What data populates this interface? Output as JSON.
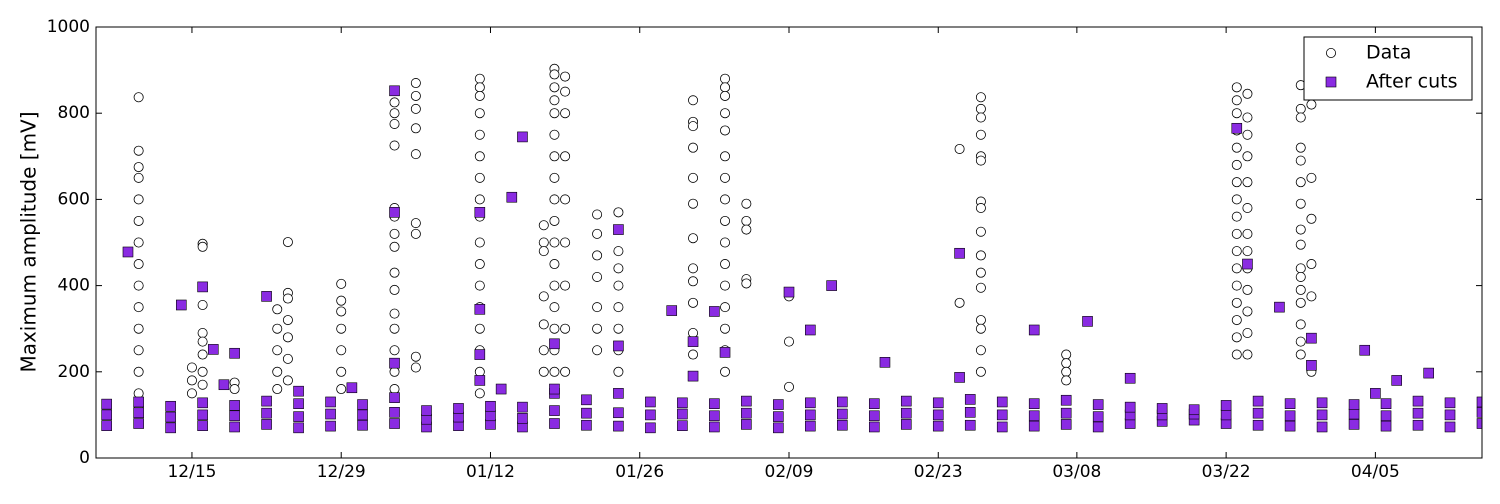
{
  "chart_data": {
    "type": "scatter",
    "y_label": "Maximum amplitude [mV]",
    "xlim": [
      "12/06",
      "04/15"
    ],
    "xticks": [
      "12/15",
      "12/29",
      "01/12",
      "01/26",
      "02/09",
      "02/23",
      "03/08",
      "03/22",
      "04/05"
    ],
    "ylim": [
      0,
      1000
    ],
    "yticks": [
      0,
      200,
      400,
      600,
      800,
      1000
    ],
    "legend": "upper right",
    "series": [
      {
        "name": "Data",
        "marker": "circle",
        "color": "#ffffff",
        "x": [
          "12/10",
          "12/10",
          "12/10",
          "12/10",
          "12/10",
          "12/10",
          "12/10",
          "12/10",
          "12/10",
          "12/10",
          "12/10",
          "12/10",
          "12/10",
          "12/10",
          "12/10",
          "12/15",
          "12/15",
          "12/15",
          "12/16",
          "12/16",
          "12/16",
          "12/16",
          "12/16",
          "12/16",
          "12/16",
          "12/16",
          "12/19",
          "12/19",
          "12/23",
          "12/23",
          "12/23",
          "12/23",
          "12/23",
          "12/24",
          "12/24",
          "12/24",
          "12/24",
          "12/24",
          "12/24",
          "12/24",
          "12/29",
          "12/29",
          "12/29",
          "12/29",
          "12/29",
          "12/29",
          "12/29",
          "01/03",
          "01/03",
          "01/03",
          "01/03",
          "01/03",
          "01/03",
          "01/03",
          "01/03",
          "01/03",
          "01/03",
          "01/03",
          "01/03",
          "01/03",
          "01/03",
          "01/03",
          "01/05",
          "01/05",
          "01/05",
          "01/05",
          "01/05",
          "01/05",
          "01/05",
          "01/05",
          "01/05",
          "01/11",
          "01/11",
          "01/11",
          "01/11",
          "01/11",
          "01/11",
          "01/11",
          "01/11",
          "01/11",
          "01/11",
          "01/11",
          "01/11",
          "01/11",
          "01/11",
          "01/11",
          "01/11",
          "01/11",
          "01/17",
          "01/17",
          "01/17",
          "01/17",
          "01/17",
          "01/17",
          "01/17",
          "01/18",
          "01/18",
          "01/18",
          "01/18",
          "01/18",
          "01/18",
          "01/18",
          "01/18",
          "01/18",
          "01/18",
          "01/18",
          "01/18",
          "01/18",
          "01/18",
          "01/18",
          "01/18",
          "01/18",
          "01/18",
          "01/19",
          "01/19",
          "01/19",
          "01/19",
          "01/19",
          "01/19",
          "01/19",
          "01/19",
          "01/19",
          "01/22",
          "01/22",
          "01/22",
          "01/22",
          "01/22",
          "01/22",
          "01/22",
          "01/24",
          "01/24",
          "01/24",
          "01/24",
          "01/24",
          "01/24",
          "01/24",
          "01/24",
          "01/24",
          "01/31",
          "01/31",
          "01/31",
          "01/31",
          "01/31",
          "01/31",
          "01/31",
          "01/31",
          "01/31",
          "01/31",
          "01/31",
          "01/31",
          "02/03",
          "02/03",
          "02/03",
          "02/03",
          "02/03",
          "02/03",
          "02/03",
          "02/03",
          "02/03",
          "02/03",
          "02/03",
          "02/03",
          "02/03",
          "02/03",
          "02/03",
          "02/03",
          "02/05",
          "02/05",
          "02/05",
          "02/05",
          "02/05",
          "02/09",
          "02/09",
          "02/09",
          "02/25",
          "02/25",
          "02/27",
          "02/27",
          "02/27",
          "02/27",
          "02/27",
          "02/27",
          "02/27",
          "02/27",
          "02/27",
          "02/27",
          "02/27",
          "02/27",
          "02/27",
          "02/27",
          "02/27",
          "02/27",
          "03/07",
          "03/07",
          "03/07",
          "03/07",
          "03/23",
          "03/23",
          "03/23",
          "03/23",
          "03/23",
          "03/23",
          "03/23",
          "03/23",
          "03/23",
          "03/23",
          "03/23",
          "03/23",
          "03/23",
          "03/23",
          "03/23",
          "03/23",
          "03/23",
          "03/24",
          "03/24",
          "03/24",
          "03/24",
          "03/24",
          "03/24",
          "03/24",
          "03/24",
          "03/24",
          "03/24",
          "03/24",
          "03/24",
          "03/24",
          "03/29",
          "03/29",
          "03/29",
          "03/29",
          "03/29",
          "03/29",
          "03/29",
          "03/29",
          "03/29",
          "03/29",
          "03/29",
          "03/29",
          "03/29",
          "03/29",
          "03/29",
          "03/29",
          "03/30",
          "03/30",
          "03/30",
          "03/30",
          "03/30",
          "03/30"
        ],
        "y": [
          837,
          713,
          675,
          650,
          600,
          550,
          500,
          450,
          400,
          350,
          300,
          250,
          200,
          150,
          120,
          210,
          180,
          150,
          497,
          490,
          355,
          290,
          270,
          240,
          200,
          170,
          175,
          160,
          345,
          300,
          250,
          200,
          160,
          501,
          383,
          370,
          320,
          280,
          230,
          180,
          404,
          365,
          340,
          300,
          250,
          200,
          160,
          825,
          800,
          775,
          725,
          580,
          560,
          520,
          490,
          430,
          390,
          335,
          300,
          250,
          200,
          160,
          870,
          840,
          810,
          765,
          705,
          545,
          520,
          235,
          210,
          880,
          860,
          840,
          800,
          750,
          700,
          650,
          600,
          560,
          500,
          450,
          400,
          350,
          300,
          250,
          200,
          150,
          540,
          500,
          480,
          375,
          310,
          250,
          200,
          903,
          890,
          860,
          830,
          800,
          750,
          700,
          650,
          600,
          550,
          500,
          450,
          400,
          350,
          300,
          250,
          200,
          150,
          885,
          850,
          800,
          700,
          600,
          500,
          400,
          300,
          200,
          565,
          520,
          470,
          420,
          350,
          300,
          250,
          570,
          530,
          480,
          440,
          400,
          350,
          300,
          250,
          200,
          830,
          780,
          770,
          720,
          650,
          590,
          510,
          440,
          410,
          360,
          290,
          240,
          880,
          860,
          840,
          800,
          760,
          700,
          650,
          600,
          550,
          500,
          450,
          400,
          350,
          300,
          250,
          200,
          590,
          550,
          530,
          415,
          405,
          375,
          270,
          165,
          717,
          360,
          837,
          810,
          790,
          750,
          700,
          690,
          595,
          580,
          525,
          470,
          430,
          395,
          320,
          300,
          250,
          200,
          240,
          220,
          200,
          180,
          860,
          830,
          800,
          760,
          720,
          680,
          640,
          600,
          560,
          520,
          480,
          440,
          400,
          360,
          320,
          280,
          240,
          845,
          790,
          750,
          700,
          640,
          580,
          520,
          480,
          440,
          390,
          340,
          290,
          240,
          865,
          810,
          790,
          720,
          690,
          640,
          590,
          530,
          495,
          440,
          420,
          390,
          360,
          310,
          270,
          240,
          820,
          650,
          555,
          450,
          375,
          200
        ]
      },
      {
        "name": "After cuts",
        "marker": "square",
        "color": "#8a2be2",
        "x": [
          "12/07",
          "12/07",
          "12/07",
          "12/10",
          "12/10",
          "12/10",
          "12/13",
          "12/13",
          "12/13",
          "12/16",
          "12/16",
          "12/16",
          "12/19",
          "12/19",
          "12/19",
          "12/22",
          "12/22",
          "12/22",
          "12/25",
          "12/25",
          "12/25",
          "12/28",
          "12/28",
          "12/28",
          "12/31",
          "12/31",
          "12/31",
          "01/03",
          "01/03",
          "01/03",
          "01/06",
          "01/06",
          "01/06",
          "01/09",
          "01/09",
          "01/09",
          "01/12",
          "01/12",
          "01/12",
          "01/15",
          "01/15",
          "01/15",
          "01/18",
          "01/18",
          "01/18",
          "01/21",
          "01/21",
          "01/21",
          "01/24",
          "01/24",
          "01/24",
          "01/27",
          "01/27",
          "01/27",
          "01/30",
          "01/30",
          "01/30",
          "02/02",
          "02/02",
          "02/02",
          "02/05",
          "02/05",
          "02/05",
          "02/08",
          "02/08",
          "02/08",
          "02/11",
          "02/11",
          "02/11",
          "02/14",
          "02/14",
          "02/14",
          "02/17",
          "02/17",
          "02/17",
          "02/20",
          "02/20",
          "02/20",
          "02/23",
          "02/23",
          "02/23",
          "02/26",
          "02/26",
          "02/26",
          "03/01",
          "03/01",
          "03/01",
          "03/04",
          "03/04",
          "03/04",
          "03/07",
          "03/07",
          "03/07",
          "03/10",
          "03/10",
          "03/10",
          "03/13",
          "03/13",
          "03/13",
          "03/16",
          "03/16",
          "03/16",
          "03/19",
          "03/19",
          "03/19",
          "03/22",
          "03/22",
          "03/22",
          "03/25",
          "03/25",
          "03/25",
          "03/28",
          "03/28",
          "03/28",
          "03/31",
          "03/31",
          "03/31",
          "04/03",
          "04/03",
          "04/03",
          "04/06",
          "04/06",
          "04/06",
          "04/09",
          "04/09",
          "04/09",
          "04/12",
          "04/12",
          "04/12",
          "04/15",
          "04/15",
          "04/15",
          "12/09",
          "12/14",
          "12/16",
          "12/17",
          "12/18",
          "12/19",
          "12/22",
          "12/25",
          "12/30",
          "01/03",
          "01/03",
          "01/03",
          "01/11",
          "01/11",
          "01/11",
          "01/11",
          "01/13",
          "01/14",
          "01/15",
          "01/18",
          "01/18",
          "01/24",
          "01/24",
          "01/29",
          "01/31",
          "01/31",
          "02/02",
          "02/03",
          "02/09",
          "02/11",
          "02/13",
          "02/18",
          "02/25",
          "02/25",
          "03/04",
          "03/09",
          "03/13",
          "03/23",
          "03/24",
          "03/27",
          "03/30",
          "03/30",
          "04/04",
          "04/05",
          "04/07",
          "04/10"
        ],
        "y": [
          75,
          100,
          125,
          80,
          105,
          130,
          70,
          95,
          120,
          75,
          100,
          128,
          72,
          98,
          122,
          78,
          104,
          132,
          70,
          96,
          126,
          74,
          102,
          130,
          76,
          100,
          124,
          80,
          106,
          140,
          72,
          90,
          110,
          75,
          95,
          115,
          78,
          98,
          120,
          72,
          92,
          118,
          80,
          110,
          150,
          76,
          104,
          135,
          74,
          105,
          150,
          70,
          100,
          130,
          75,
          102,
          128,
          72,
          98,
          126,
          78,
          104,
          132,
          70,
          96,
          124,
          74,
          100,
          128,
          76,
          102,
          130,
          72,
          98,
          126,
          78,
          104,
          132,
          74,
          100,
          128,
          76,
          106,
          136,
          72,
          100,
          130,
          74,
          98,
          126,
          78,
          104,
          134,
          72,
          96,
          124,
          80,
          100,
          118,
          85,
          100,
          115,
          88,
          102,
          112,
          80,
          100,
          122,
          76,
          104,
          132,
          74,
          98,
          126,
          72,
          100,
          128,
          78,
          102,
          124,
          74,
          98,
          126,
          76,
          104,
          132,
          72,
          100,
          128,
          80,
          106,
          130,
          478,
          355,
          397,
          252,
          170,
          243,
          375,
          155,
          163,
          852,
          570,
          220,
          570,
          345,
          240,
          180,
          160,
          605,
          745,
          160,
          265,
          530,
          260,
          342,
          270,
          190,
          340,
          245,
          385,
          297,
          400,
          222,
          475,
          187,
          297,
          317,
          185,
          765,
          450,
          350,
          278,
          215,
          250,
          150,
          180,
          197
        ]
      }
    ]
  }
}
